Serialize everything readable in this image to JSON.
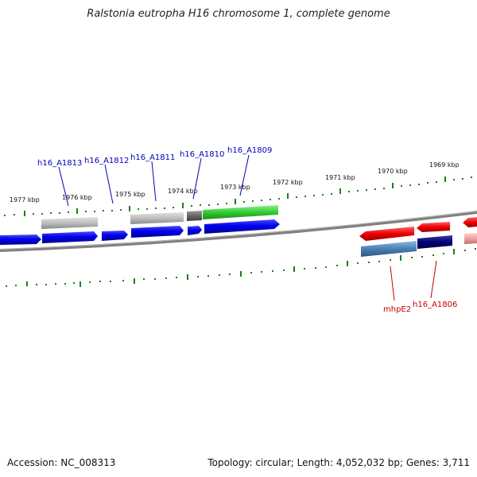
{
  "title": "Ralstonia eutropha H16 chromosome 1, complete genome",
  "accession": "Accession: NC_008313",
  "summary": "Topology: circular; Length: 4,052,032 bp; Genes: 3,711",
  "colors": {
    "forward_gene": "#0000ee",
    "forward_cds": "#a6a6a6",
    "forward_rna": "#33cc33",
    "forward_dark": "#666666",
    "reverse_gene": "#ee0000",
    "reverse_cds": "#4a7fb5",
    "reverse_dark": "#000077",
    "reverse_faded": "#f0a0a0",
    "backbone": "#808080",
    "tick": "#1a7f1a",
    "forward_label": "#0000bb",
    "reverse_label": "#cc0000"
  },
  "ticks": {
    "outer": [
      "1977 kbp",
      "1976 kbp",
      "1975 kbp",
      "1974 kbp",
      "1973 kbp",
      "1972 kbp",
      "1971 kbp",
      "1970 kbp",
      "1969 kbp"
    ]
  },
  "forward_labels": [
    "h16_A1813",
    "h16_A1812",
    "h16_A1811",
    "h16_A1810",
    "h16_A1809"
  ],
  "reverse_labels": [
    "mhpE2",
    "h16_A1806"
  ]
}
